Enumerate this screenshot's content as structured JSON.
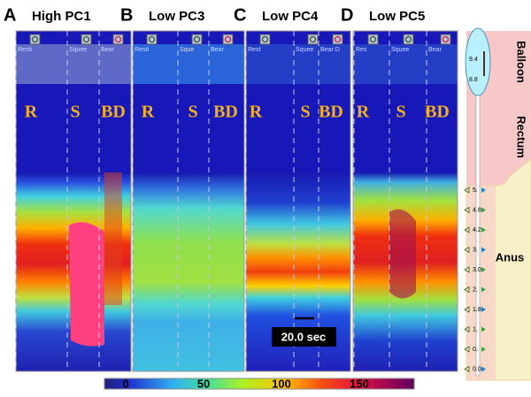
{
  "panels": [
    {
      "letter": "A",
      "title": "High PC1",
      "events": [
        "Resti",
        "Squee",
        "Bear"
      ],
      "phases": [
        "R",
        "S",
        "BD"
      ]
    },
    {
      "letter": "B",
      "title": "Low PC3",
      "events": [
        "Resti",
        "Sque",
        "Bear"
      ],
      "phases": [
        "R",
        "S",
        "BD"
      ]
    },
    {
      "letter": "C",
      "title": "Low PC4",
      "events": [
        "Rest",
        "Squee",
        "Bear D"
      ],
      "phases": [
        "R",
        "S",
        "BD"
      ]
    },
    {
      "letter": "D",
      "title": "Low PC5",
      "events": [
        "Res",
        "Squee",
        "Bear"
      ],
      "phases": [
        "R",
        "S",
        "BD"
      ]
    }
  ],
  "scale_bar": "20.0 sec",
  "colorbar": {
    "ticks": [
      0,
      50,
      100,
      150
    ]
  },
  "anatomy": {
    "balloon": "Balloon",
    "rectum": "Rectum",
    "anus": "Anus",
    "balloon_marks": [
      "9.4",
      "8.8"
    ],
    "sensors": [
      "5.",
      "4.8",
      "4.2",
      "3.",
      "3.0",
      "2.",
      "1.8",
      "1.",
      "0.",
      "0.0"
    ]
  }
}
